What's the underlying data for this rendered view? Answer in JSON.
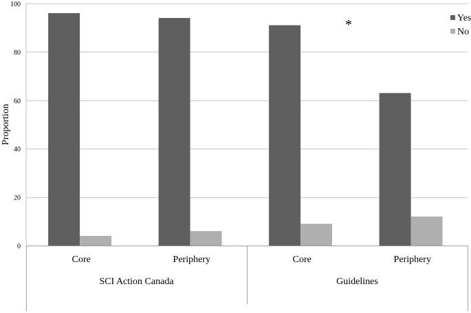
{
  "chart_data": {
    "type": "bar",
    "ylabel": "Proportion",
    "ylim": [
      0,
      100
    ],
    "yticks": [
      0,
      20,
      40,
      60,
      80,
      100
    ],
    "grid": true,
    "legend_position": "top-right",
    "groups": [
      {
        "label": "SCI Action Canada",
        "categories": [
          "Core",
          "Periphery"
        ]
      },
      {
        "label": "Guidelines",
        "categories": [
          "Core",
          "Periphery"
        ]
      }
    ],
    "categories": [
      "Core",
      "Periphery",
      "Core",
      "Periphery"
    ],
    "series": [
      {
        "name": "Yes",
        "color": "#5f5f5f",
        "values": [
          96,
          94,
          91,
          63
        ]
      },
      {
        "name": "No",
        "color": "#afafaf",
        "values": [
          4,
          6,
          9,
          12
        ]
      }
    ],
    "annotations": [
      {
        "text": "*"
      }
    ]
  }
}
